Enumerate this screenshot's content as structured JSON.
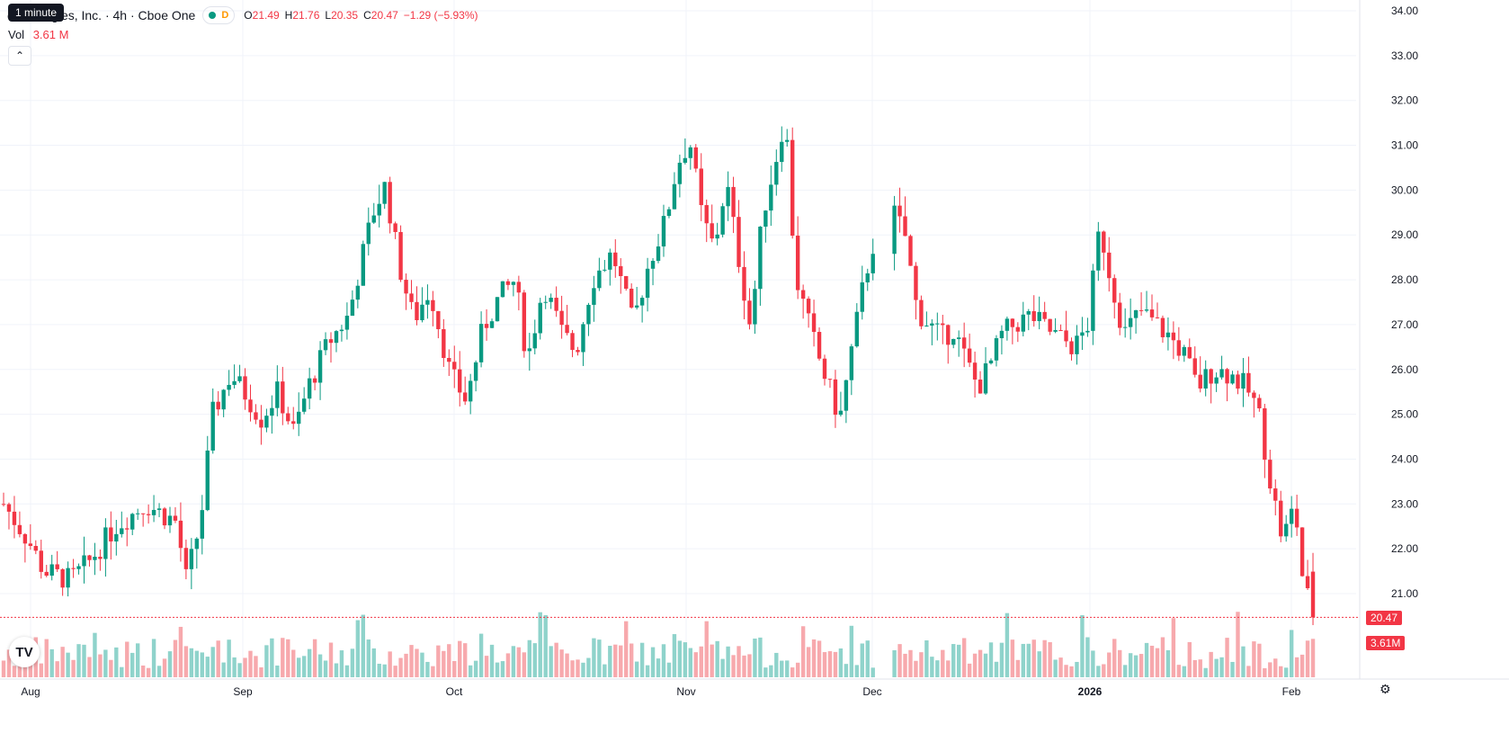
{
  "legend": {
    "title": "echnologies, Inc. · 4h · Cboe One",
    "status_letter": "D",
    "open_label": "O",
    "open": "21.49",
    "high_label": "H",
    "high": "21.76",
    "low_label": "L",
    "low": "20.35",
    "close_label": "C",
    "close": "20.47",
    "change": "−1.29 (−5.93%)"
  },
  "tooltip": "1 minute",
  "volume": {
    "label": "Vol",
    "value": "3.61 M"
  },
  "tags": {
    "price": "20.47",
    "volume": "3.61M"
  },
  "icons": {
    "collapse": "chevron-up-icon",
    "logo": "tradingview-logo",
    "settings": "gear-icon"
  },
  "colors": {
    "up": "#089981",
    "down": "#f23645",
    "up_volume": "#8fd3cb",
    "down_volume": "#f7a9ad"
  },
  "chart_data": {
    "type": "candlestick",
    "interval": "4h",
    "y_ticks": [
      "34.00",
      "33.00",
      "32.00",
      "31.00",
      "30.00",
      "29.00",
      "28.00",
      "27.00",
      "26.00",
      "25.00",
      "24.00",
      "23.00",
      "22.00",
      "21.00"
    ],
    "ylim": [
      20.0,
      34.2
    ],
    "x_labels": [
      "Aug",
      "Sep",
      "Oct",
      "Nov",
      "Dec",
      "2026",
      "Feb"
    ],
    "grid": true,
    "last_price": 20.47,
    "trend_points": [
      [
        0,
        23.0
      ],
      [
        12,
        22.2
      ],
      [
        20,
        21.5
      ],
      [
        33,
        21.3
      ],
      [
        42,
        21.7
      ],
      [
        55,
        22.5
      ],
      [
        70,
        23.0
      ],
      [
        85,
        22.6
      ],
      [
        90,
        21.3
      ],
      [
        97,
        22.6
      ],
      [
        103,
        25.0
      ],
      [
        112,
        25.9
      ],
      [
        120,
        25.4
      ],
      [
        127,
        24.9
      ],
      [
        135,
        25.5
      ],
      [
        143,
        24.6
      ],
      [
        150,
        25.6
      ],
      [
        160,
        26.6
      ],
      [
        170,
        27.2
      ],
      [
        175,
        28.2
      ],
      [
        182,
        29.5
      ],
      [
        188,
        30.1
      ],
      [
        195,
        28.3
      ],
      [
        202,
        27.1
      ],
      [
        210,
        27.8
      ],
      [
        220,
        25.9
      ],
      [
        228,
        25.3
      ],
      [
        236,
        26.9
      ],
      [
        244,
        27.6
      ],
      [
        252,
        28.0
      ],
      [
        258,
        26.2
      ],
      [
        266,
        27.9
      ],
      [
        275,
        26.8
      ],
      [
        282,
        26.4
      ],
      [
        290,
        28.0
      ],
      [
        300,
        28.6
      ],
      [
        310,
        27.0
      ],
      [
        318,
        28.4
      ],
      [
        326,
        29.3
      ],
      [
        332,
        30.6
      ],
      [
        338,
        31.1
      ],
      [
        344,
        29.4
      ],
      [
        350,
        28.7
      ],
      [
        356,
        30.2
      ],
      [
        362,
        28.5
      ],
      [
        368,
        26.9
      ],
      [
        374,
        29.5
      ],
      [
        380,
        30.6
      ],
      [
        385,
        31.7
      ],
      [
        390,
        28.1
      ],
      [
        396,
        27.1
      ],
      [
        402,
        26.2
      ],
      [
        408,
        25.4
      ],
      [
        412,
        24.9
      ],
      [
        418,
        26.5
      ],
      [
        424,
        28.0
      ],
      [
        430,
        29.1
      ],
      [
        436,
        29.7
      ],
      [
        444,
        29.0
      ],
      [
        450,
        27.3
      ],
      [
        456,
        27.0
      ],
      [
        462,
        26.7
      ],
      [
        468,
        26.9
      ],
      [
        474,
        26.2
      ],
      [
        480,
        25.6
      ],
      [
        486,
        26.1
      ],
      [
        492,
        26.8
      ],
      [
        498,
        27.0
      ],
      [
        506,
        27.2
      ],
      [
        514,
        26.9
      ],
      [
        520,
        26.7
      ],
      [
        528,
        26.5
      ],
      [
        534,
        27.0
      ],
      [
        540,
        29.2
      ],
      [
        545,
        28.1
      ],
      [
        552,
        26.8
      ],
      [
        560,
        27.3
      ],
      [
        568,
        27.0
      ],
      [
        575,
        26.7
      ],
      [
        582,
        26.3
      ],
      [
        588,
        25.6
      ],
      [
        596,
        26.0
      ],
      [
        604,
        25.9
      ],
      [
        612,
        25.6
      ],
      [
        618,
        25.1
      ],
      [
        624,
        23.5
      ],
      [
        630,
        22.2
      ],
      [
        636,
        23.0
      ],
      [
        640,
        21.3
      ],
      [
        645,
        20.5
      ]
    ],
    "volume_series": "per-candle volume bars, last 3.61M"
  }
}
